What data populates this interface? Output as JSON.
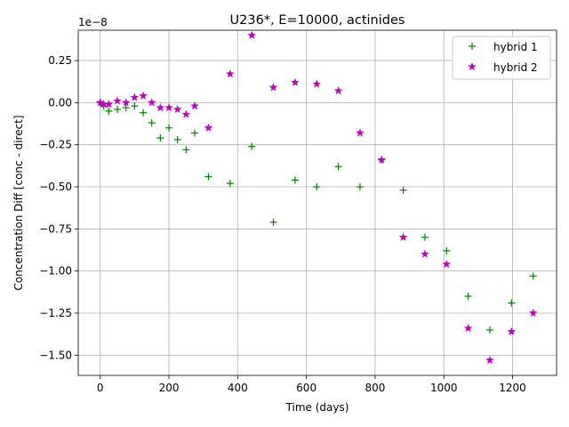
{
  "chart_data": {
    "type": "scatter",
    "title": "U236*, E=10000, actinides",
    "xlabel": "Time (days)",
    "ylabel": "Concentration Diff [conc - direct]",
    "y_scale_label": "1e−8",
    "xlim": [
      -64,
      1328
    ],
    "ylim": [
      -1.62,
      0.43
    ],
    "x_ticks": [
      0,
      200,
      400,
      600,
      800,
      1000,
      1200
    ],
    "x_tick_labels": [
      "0",
      "200",
      "400",
      "600",
      "800",
      "1000",
      "1200"
    ],
    "y_ticks": [
      -1.5,
      -1.25,
      -1.0,
      -0.75,
      -0.5,
      -0.25,
      0.0,
      0.25
    ],
    "y_tick_labels": [
      "−1.50",
      "−1.25",
      "−1.00",
      "−0.75",
      "−0.50",
      "−0.25",
      "0.00",
      "0.25"
    ],
    "grid": true,
    "legend_position": "top-right",
    "series": [
      {
        "name": "hybrid 1",
        "marker": "plus",
        "color": "#008000",
        "x": [
          0,
          10,
          25,
          50,
          75,
          100,
          125,
          150,
          175,
          200,
          225,
          250,
          275,
          315,
          378,
          441,
          504,
          567,
          630,
          693,
          756,
          819,
          882,
          945,
          1008,
          1071,
          1134,
          1197,
          1260
        ],
        "y": [
          0.0,
          -0.02,
          -0.05,
          -0.04,
          -0.03,
          -0.02,
          -0.06,
          -0.12,
          -0.21,
          -0.15,
          -0.22,
          -0.28,
          -0.18,
          -0.44,
          -0.48,
          -0.26,
          -0.71,
          -0.46,
          -0.5,
          -0.38,
          -0.5,
          -0.34,
          -0.52,
          -0.8,
          -0.88,
          -1.15,
          -1.35,
          -1.19,
          -1.03
        ]
      },
      {
        "name": "hybrid 2",
        "marker": "star",
        "color": "#bf00bf",
        "x": [
          0,
          10,
          25,
          50,
          75,
          100,
          125,
          150,
          175,
          200,
          225,
          250,
          275,
          315,
          378,
          441,
          504,
          567,
          630,
          693,
          756,
          819,
          882,
          945,
          1008,
          1071,
          1134,
          1197,
          1260
        ],
        "y": [
          0.0,
          -0.01,
          -0.01,
          0.01,
          0.0,
          0.03,
          0.04,
          0.0,
          -0.03,
          -0.03,
          -0.04,
          -0.07,
          -0.02,
          -0.15,
          0.17,
          0.4,
          0.09,
          0.12,
          0.11,
          0.07,
          -0.18,
          -0.34,
          -0.8,
          -0.9,
          -0.96,
          -1.34,
          -1.53,
          -1.36,
          -1.25
        ]
      }
    ]
  }
}
